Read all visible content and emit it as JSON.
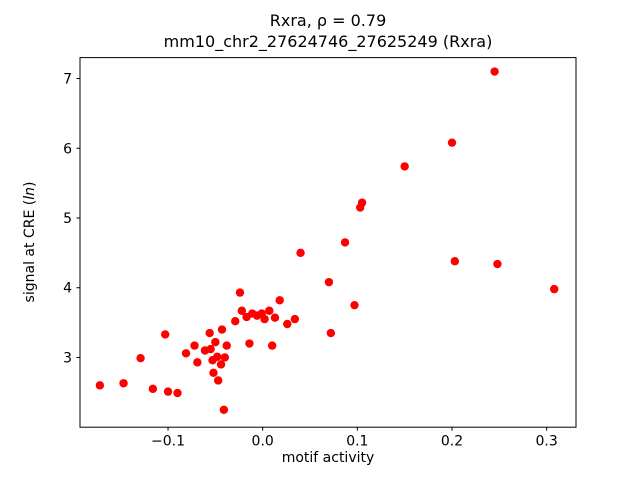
{
  "chart_data": {
    "type": "scatter",
    "title_line1": "Rxra, ρ = 0.79",
    "title_line2": "mm10_chr2_27624746_27625249 (Rxra)",
    "xlabel": "motif activity",
    "ylabel_parts": {
      "prefix": "signal at CRE (",
      "italic": "ln",
      "suffix": ")"
    },
    "marker_color": "#ff0000",
    "xlim": [
      -0.193,
      0.331
    ],
    "ylim": [
      2.0,
      7.3
    ],
    "xticks": [
      {
        "value": -0.1,
        "label": "−0.1"
      },
      {
        "value": 0.0,
        "label": "0.0"
      },
      {
        "value": 0.1,
        "label": "0.1"
      },
      {
        "value": 0.2,
        "label": "0.2"
      },
      {
        "value": 0.3,
        "label": "0.3"
      }
    ],
    "yticks": [
      {
        "value": 3,
        "label": "3"
      },
      {
        "value": 4,
        "label": "4"
      },
      {
        "value": 5,
        "label": "5"
      },
      {
        "value": 6,
        "label": "6"
      },
      {
        "value": 7,
        "label": "7"
      }
    ],
    "points": [
      [
        -0.172,
        2.6
      ],
      [
        -0.147,
        2.63
      ],
      [
        -0.129,
        2.99
      ],
      [
        -0.116,
        2.55
      ],
      [
        -0.103,
        3.33
      ],
      [
        -0.1,
        2.51
      ],
      [
        -0.09,
        2.49
      ],
      [
        -0.081,
        3.06
      ],
      [
        -0.072,
        3.17
      ],
      [
        -0.069,
        2.93
      ],
      [
        -0.061,
        3.1
      ],
      [
        -0.056,
        3.35
      ],
      [
        -0.055,
        3.12
      ],
      [
        -0.053,
        2.96
      ],
      [
        -0.052,
        2.78
      ],
      [
        -0.05,
        3.22
      ],
      [
        -0.048,
        3.01
      ],
      [
        -0.047,
        2.67
      ],
      [
        -0.044,
        2.9
      ],
      [
        -0.043,
        3.4
      ],
      [
        -0.041,
        2.25
      ],
      [
        -0.04,
        3.0
      ],
      [
        -0.038,
        3.17
      ],
      [
        -0.029,
        3.52
      ],
      [
        -0.024,
        3.93
      ],
      [
        -0.022,
        3.67
      ],
      [
        -0.017,
        3.58
      ],
      [
        -0.014,
        3.2
      ],
      [
        -0.011,
        3.63
      ],
      [
        -0.006,
        3.6
      ],
      [
        -0.001,
        3.63
      ],
      [
        0.002,
        3.55
      ],
      [
        0.007,
        3.67
      ],
      [
        0.01,
        3.17
      ],
      [
        0.013,
        3.57
      ],
      [
        0.018,
        3.82
      ],
      [
        0.026,
        3.48
      ],
      [
        0.034,
        3.55
      ],
      [
        0.04,
        4.5
      ],
      [
        0.07,
        4.08
      ],
      [
        0.072,
        3.35
      ],
      [
        0.087,
        4.65
      ],
      [
        0.097,
        3.75
      ],
      [
        0.103,
        5.15
      ],
      [
        0.105,
        5.22
      ],
      [
        0.15,
        5.74
      ],
      [
        0.2,
        6.08
      ],
      [
        0.203,
        4.38
      ],
      [
        0.245,
        7.1
      ],
      [
        0.248,
        4.34
      ],
      [
        0.308,
        3.98
      ]
    ]
  }
}
